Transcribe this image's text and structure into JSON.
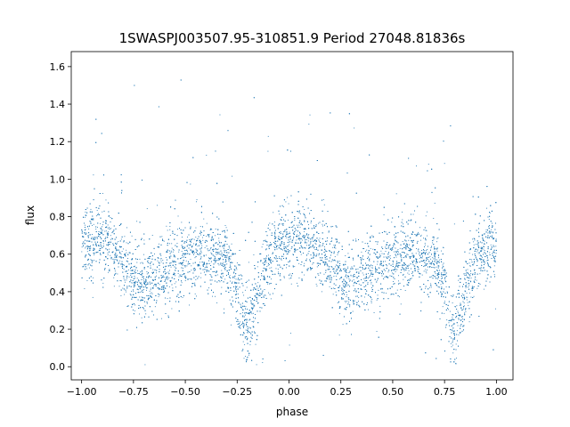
{
  "chart_data": {
    "type": "scatter",
    "title": "1SWASPJ003507.95-310851.9 Period 27048.81836s",
    "xlabel": "phase",
    "ylabel": "flux",
    "xlim": [
      -1.05,
      1.08
    ],
    "ylim": [
      -0.07,
      1.68
    ],
    "xticks": [
      -1.0,
      -0.75,
      -0.5,
      -0.25,
      0.0,
      0.25,
      0.5,
      0.75,
      1.0
    ],
    "xtick_labels": [
      "−1.00",
      "−0.75",
      "−0.50",
      "−0.25",
      "0.00",
      "0.25",
      "0.50",
      "0.75",
      "1.00"
    ],
    "yticks": [
      0.0,
      0.2,
      0.4,
      0.6,
      0.8,
      1.0,
      1.2,
      1.4,
      1.6
    ],
    "ytick_labels": [
      "0.0",
      "0.2",
      "0.4",
      "0.6",
      "0.8",
      "1.0",
      "1.2",
      "1.4",
      "1.6"
    ],
    "grid": false,
    "marker_color": "#1f77b4",
    "series": [
      {
        "name": "",
        "x_range": [
          -1.0,
          1.0
        ],
        "approx_point_count": 10000,
        "phase_profile": {
          "phase": [
            -1.0,
            -0.9,
            -0.8,
            -0.75,
            -0.7,
            -0.6,
            -0.5,
            -0.4,
            -0.3,
            -0.25,
            -0.22,
            -0.2,
            -0.15,
            -0.1,
            0.0,
            0.1,
            0.2,
            0.25,
            0.3,
            0.4,
            0.5,
            0.6,
            0.7,
            0.75,
            0.78,
            0.8,
            0.85,
            0.9,
            1.0
          ],
          "median_flux": [
            0.66,
            0.67,
            0.56,
            0.47,
            0.44,
            0.52,
            0.58,
            0.6,
            0.57,
            0.42,
            0.24,
            0.22,
            0.38,
            0.58,
            0.68,
            0.66,
            0.56,
            0.47,
            0.44,
            0.52,
            0.58,
            0.6,
            0.56,
            0.42,
            0.24,
            0.22,
            0.38,
            0.58,
            0.66
          ]
        }
      }
    ]
  }
}
